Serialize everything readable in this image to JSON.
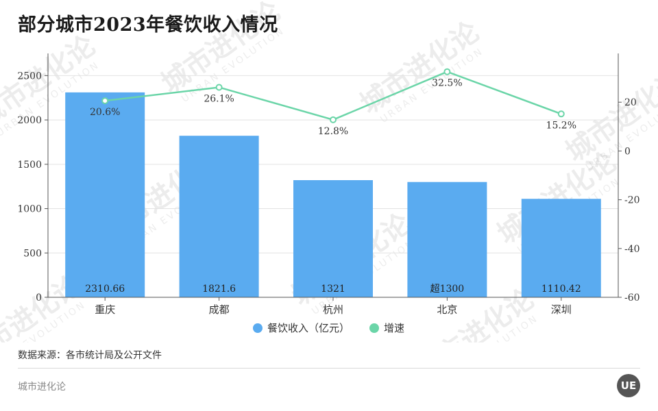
{
  "title": "部分城市2023年餐饮收入情况",
  "source_note": "数据来源：各市统计局及公开文件",
  "brand": "城市进化论",
  "logo_text": "UE",
  "watermark_text": "城市进化论",
  "watermark_sub": "URBAN EVOLUTION",
  "colors": {
    "bar": "#5aabf0",
    "line": "#6bd5a8",
    "axis": "#555555",
    "grid": "#e2e2e2"
  },
  "chart_data": {
    "type": "bar",
    "categories": [
      "重庆",
      "成都",
      "杭州",
      "北京",
      "深圳"
    ],
    "series": [
      {
        "name": "餐饮收入（亿元）",
        "type": "bar",
        "axis": "left",
        "values": [
          2310.66,
          1821.6,
          1321,
          1300,
          1110.42
        ],
        "labels": [
          "2310.66",
          "1821.6",
          "1321",
          "超1300",
          "1110.42"
        ]
      },
      {
        "name": "增速",
        "type": "line",
        "axis": "right",
        "values": [
          20.6,
          26.1,
          12.8,
          32.5,
          15.2
        ],
        "labels": [
          "20.6%",
          "26.1%",
          "12.8%",
          "32.5%",
          "15.2%"
        ]
      }
    ],
    "y_left": {
      "ylim": [
        0,
        2750
      ],
      "ticks": [
        0,
        500,
        1000,
        1500,
        2000,
        2500
      ]
    },
    "y_right": {
      "ylim": [
        -60,
        40
      ],
      "ticks": [
        -60,
        -40,
        -20,
        0,
        20
      ]
    },
    "grid": true,
    "legend_position": "bottom-center"
  }
}
